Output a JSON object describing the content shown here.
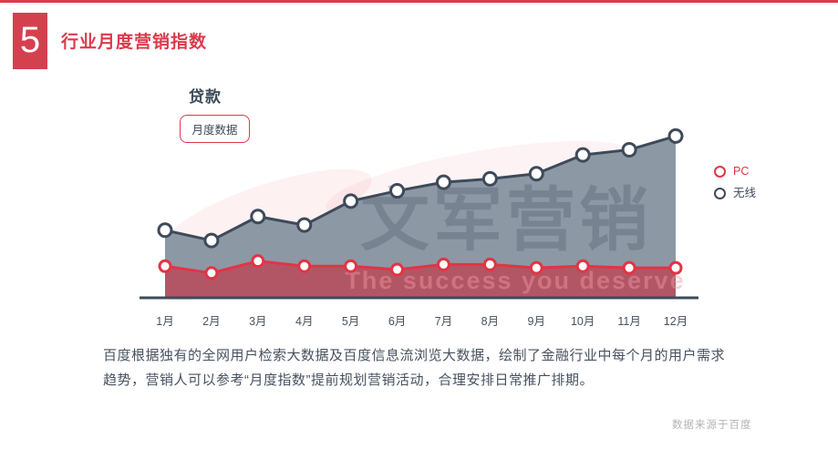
{
  "page": {
    "badge_number": "5",
    "title": "行业月度营销指数",
    "description_line1": "百度根据独有的全网用户检索大数据及百度信息流浏览大数据，绘制了金融行业中每个月的用户需求",
    "description_line2": "趋势，营销人可以参考“月度指数”提前规划营销活动，合理安排日常推广排期。",
    "source_note": "数据来源于百度"
  },
  "chart_header": {
    "title": "贷款",
    "tag_button_label": "月度数据"
  },
  "watermark": {
    "logo_text": "文军营销",
    "slogan": "The success you deserve"
  },
  "colors": {
    "accent": "#dc3a4b",
    "badge": "#d5404f",
    "pc_line": "#e23444",
    "pc_fill": "#b25666",
    "wireless_line": "#3e4a59",
    "wireless_fill": "#8d98a5",
    "axis": "#3f4b5a",
    "x_label": "#47525f",
    "source_note": "#b3b3b3"
  },
  "chart_data": {
    "type": "area",
    "title": "贷款",
    "categories": [
      "1月",
      "2月",
      "3月",
      "4月",
      "5月",
      "6月",
      "7月",
      "8月",
      "9月",
      "10月",
      "11月",
      "12月"
    ],
    "series": [
      {
        "name": "PC",
        "color": "#e23444",
        "fill": "#b25666",
        "values": [
          19,
          15,
          22,
          19,
          19,
          17,
          20,
          20,
          18,
          19,
          18,
          18
        ]
      },
      {
        "name": "无线",
        "color": "#3e4a59",
        "fill": "#8d98a5",
        "values": [
          40,
          34,
          48,
          43,
          57,
          63,
          68,
          70,
          73,
          84,
          87,
          95
        ]
      }
    ],
    "xlabel": "",
    "ylabel": "",
    "ylim": [
      0,
      100
    ],
    "grid": false,
    "legend_position": "right"
  }
}
